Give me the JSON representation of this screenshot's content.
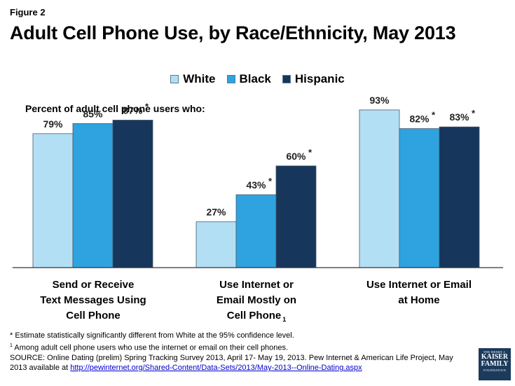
{
  "figure_label": "Figure 2",
  "chart_data": {
    "type": "bar",
    "title": "Adult Cell Phone Use, by Race/Ethnicity, May 2013",
    "subtitle": "Percent  of adult cell phone users who:",
    "ylim": [
      0,
      100
    ],
    "categories": [
      "Send or Receive Text Messages Using Cell Phone",
      "Use Internet or Email Mostly on Cell Phone",
      "Use Internet or Email at Home"
    ],
    "category_lines": [
      [
        "Send or Receive",
        "Text Messages Using",
        "Cell Phone"
      ],
      [
        "Use Internet or",
        "Email Mostly on",
        "Cell Phone"
      ],
      [
        "Use Internet or Email",
        "at Home"
      ]
    ],
    "category_superscripts": [
      "",
      "1",
      ""
    ],
    "series": [
      {
        "name": "White",
        "color": "#b3dff5",
        "values": [
          79,
          27,
          93
        ],
        "labels": [
          "79%",
          "27%",
          "93%"
        ],
        "significant": [
          false,
          false,
          false
        ]
      },
      {
        "name": "Black",
        "color": "#2ea3e0",
        "values": [
          85,
          43,
          82
        ],
        "labels": [
          "85%",
          "43%",
          "82%"
        ],
        "significant": [
          false,
          true,
          true
        ]
      },
      {
        "name": "Hispanic",
        "color": "#16365c",
        "values": [
          87,
          60,
          83
        ],
        "labels": [
          "87%",
          "60%",
          "83%"
        ],
        "significant": [
          true,
          true,
          true
        ]
      }
    ],
    "significance_marker": "*"
  },
  "footnotes": {
    "asterisk_note": "* Estimate statistically significantly different from White at the 95% confidence level.",
    "note1_marker": "1",
    "note1_text": " Among adult  cell phone users who use the internet or email on their cell phones.",
    "source_text": "SOURCE:  Online Dating  (prelim) Spring Tracking Survey 2013, April 17- May 19, 2013. Pew Internet & American Life Project, May 2013 available  at ",
    "source_url": "http://pewinternet.org/Shared-Content/Data-Sets/2013/May-2013--Online-Dating.aspx"
  },
  "logo": {
    "line1": "THE HENRY J.",
    "line2": "KAISER",
    "line3": "FAMILY",
    "line4": "FOUNDATION"
  }
}
